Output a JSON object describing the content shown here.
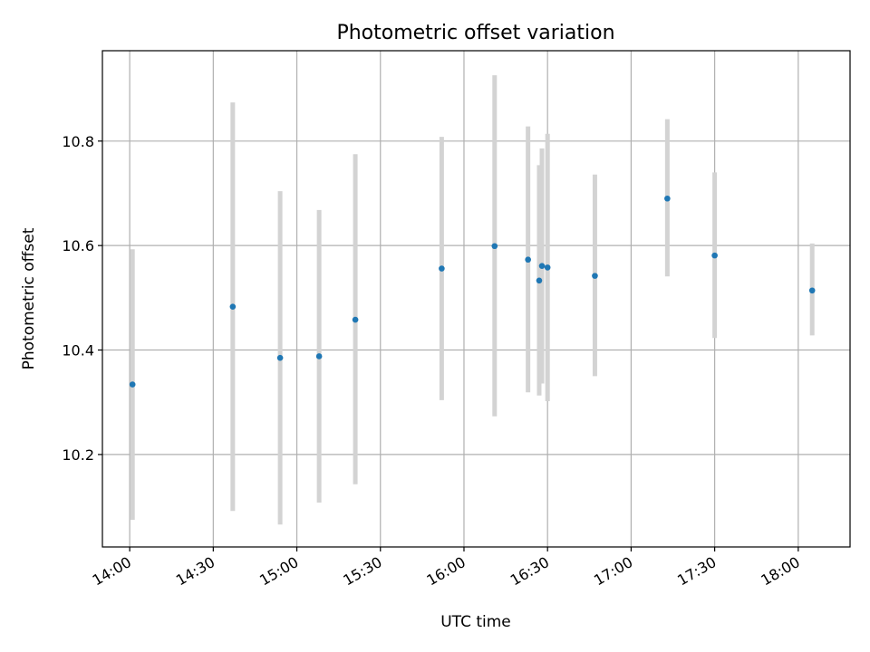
{
  "chart_data": {
    "type": "scatter",
    "title": "Photometric offset variation",
    "xlabel": "UTC time",
    "ylabel": "Photometric offset",
    "x_ticks": [
      "14:00",
      "14:30",
      "15:00",
      "15:30",
      "16:00",
      "16:30",
      "17:00",
      "17:30",
      "18:00"
    ],
    "x_tick_minutes": [
      840,
      870,
      900,
      930,
      960,
      990,
      1020,
      1050,
      1080
    ],
    "y_ticks": [
      "10.2",
      "10.4",
      "10.6",
      "10.8"
    ],
    "y_tick_values": [
      10.2,
      10.4,
      10.6,
      10.8
    ],
    "xlim_minutes": [
      830.2,
      1098.6
    ],
    "ylim": [
      10.023,
      10.973
    ],
    "grid": true,
    "colors": {
      "point": "#1f77b4",
      "errorbar": "#d3d3d3"
    },
    "points": [
      {
        "time": "14:01",
        "y": 10.334,
        "lo": 10.075,
        "hi": 10.593
      },
      {
        "time": "14:37",
        "y": 10.483,
        "lo": 10.092,
        "hi": 10.874
      },
      {
        "time": "14:54",
        "y": 10.385,
        "lo": 10.066,
        "hi": 10.704
      },
      {
        "time": "15:08",
        "y": 10.388,
        "lo": 10.108,
        "hi": 10.668
      },
      {
        "time": "15:21",
        "y": 10.458,
        "lo": 10.143,
        "hi": 10.775
      },
      {
        "time": "15:52",
        "y": 10.556,
        "lo": 10.304,
        "hi": 10.808
      },
      {
        "time": "16:11",
        "y": 10.599,
        "lo": 10.273,
        "hi": 10.926
      },
      {
        "time": "16:23",
        "y": 10.573,
        "lo": 10.319,
        "hi": 10.828
      },
      {
        "time": "16:27",
        "y": 10.533,
        "lo": 10.313,
        "hi": 10.754
      },
      {
        "time": "16:28",
        "y": 10.561,
        "lo": 10.336,
        "hi": 10.786
      },
      {
        "time": "16:30",
        "y": 10.558,
        "lo": 10.302,
        "hi": 10.814
      },
      {
        "time": "16:47",
        "y": 10.542,
        "lo": 10.35,
        "hi": 10.736
      },
      {
        "time": "17:13",
        "y": 10.69,
        "lo": 10.541,
        "hi": 10.842
      },
      {
        "time": "17:30",
        "y": 10.581,
        "lo": 10.423,
        "hi": 10.74
      },
      {
        "time": "18:05",
        "y": 10.514,
        "lo": 10.428,
        "hi": 10.604
      }
    ]
  }
}
